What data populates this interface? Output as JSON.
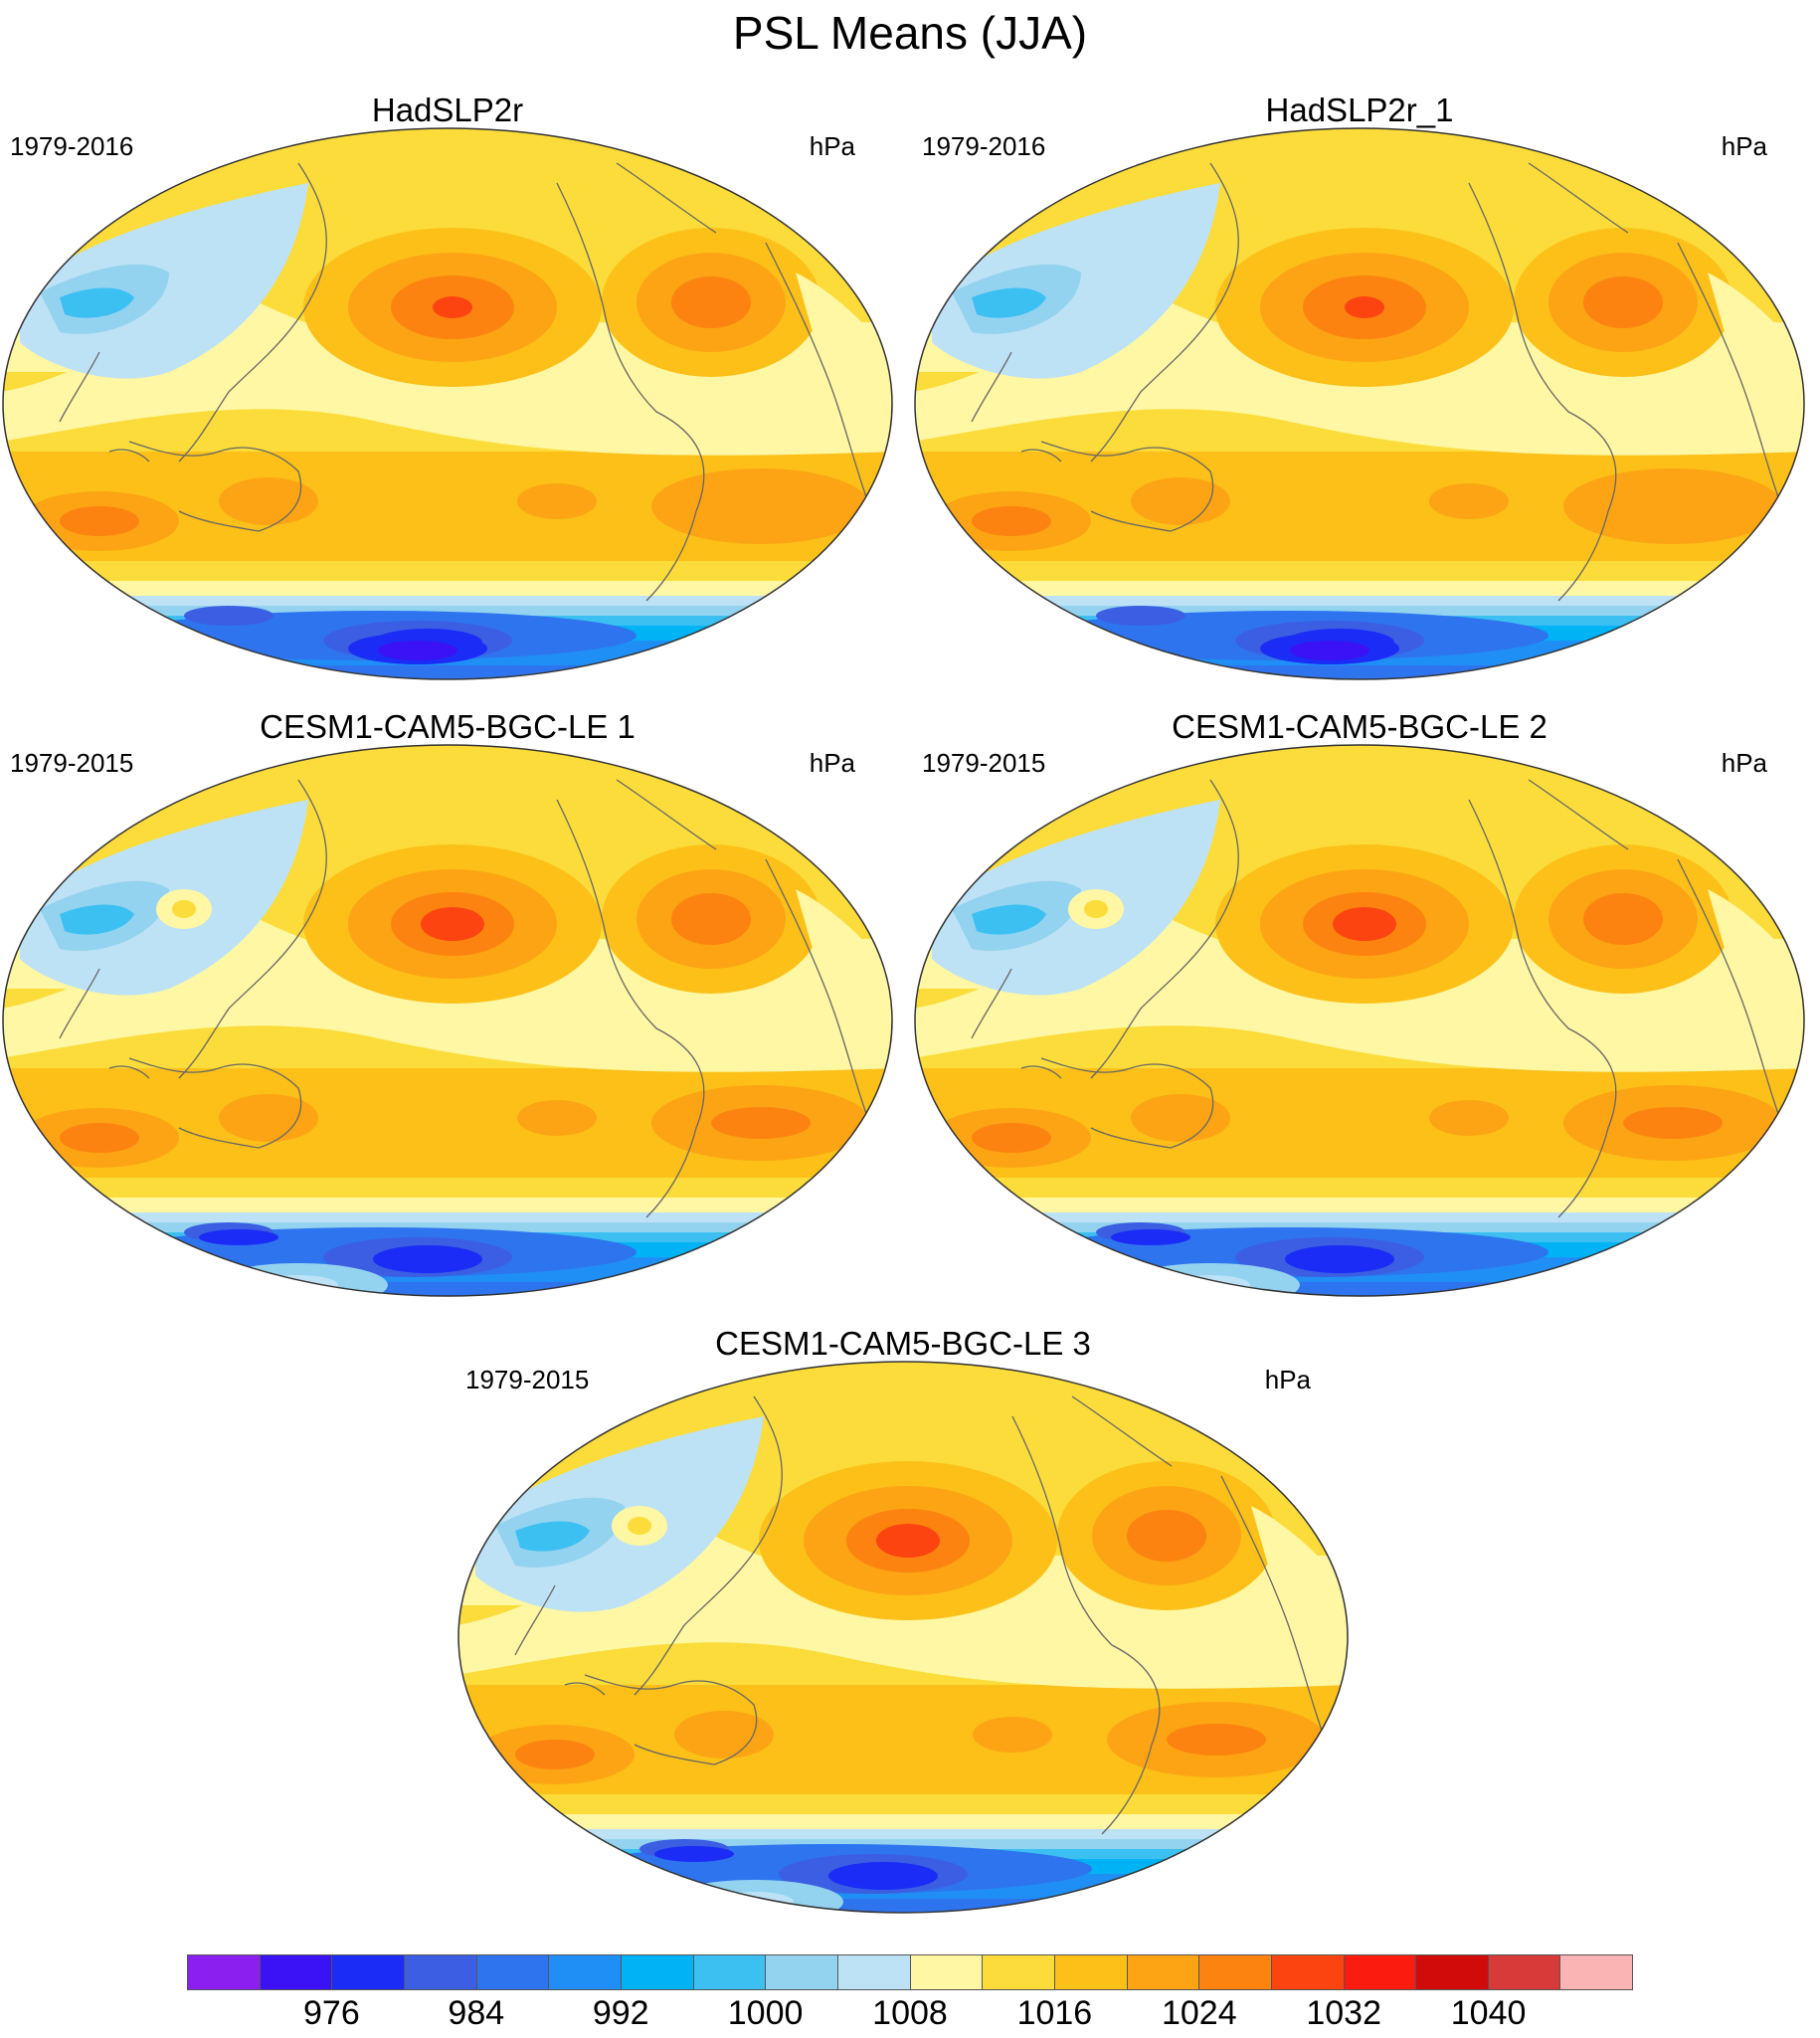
{
  "title": "PSL Means (JJA)",
  "panels": [
    {
      "title": "HadSLP2r",
      "period": "1979-2016",
      "units": "hPa"
    },
    {
      "title": "HadSLP2r_1",
      "period": "1979-2016",
      "units": "hPa"
    },
    {
      "title": "CESM1-CAM5-BGC-LE 1",
      "period": "1979-2015",
      "units": "hPa"
    },
    {
      "title": "CESM1-CAM5-BGC-LE 2",
      "period": "1979-2015",
      "units": "hPa"
    },
    {
      "title": "CESM1-CAM5-BGC-LE 3",
      "period": "1979-2015",
      "units": "hPa"
    }
  ],
  "legend": {
    "colors": [
      "#8a1ff0",
      "#3a12f5",
      "#1a2cf5",
      "#3c5ee2",
      "#2e74ee",
      "#1f8ff5",
      "#00b3f5",
      "#3cc0f2",
      "#93d3f0",
      "#bde2f5",
      "#fff7a3",
      "#fbdc3a",
      "#fcc018",
      "#fca414",
      "#fc8310",
      "#fc4410",
      "#fc1b0f",
      "#d10a0a",
      "#d83a3a",
      "#fbb4b4"
    ],
    "ticks": [
      "976",
      "984",
      "992",
      "1000",
      "1008",
      "1016",
      "1024",
      "1032",
      "1040"
    ]
  }
}
